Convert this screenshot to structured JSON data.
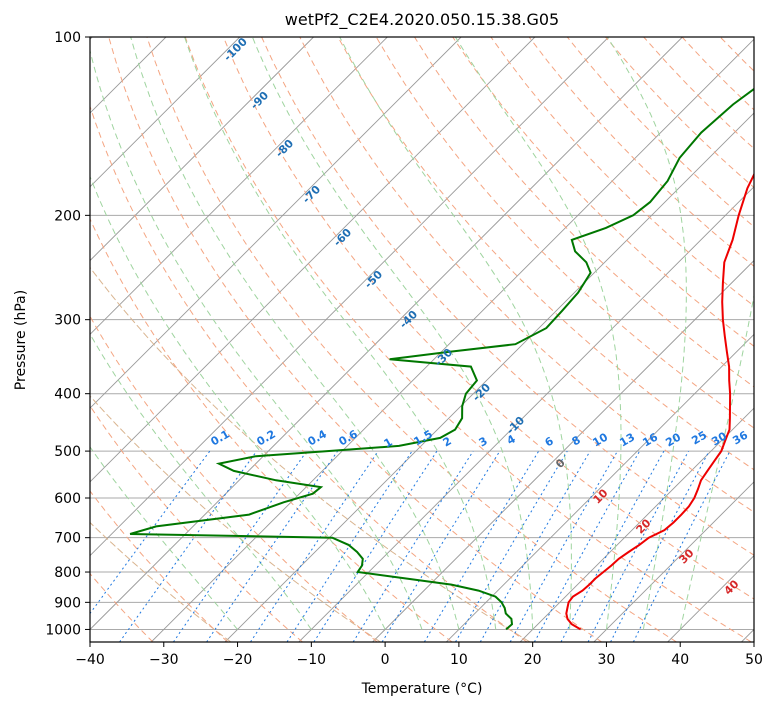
{
  "colors": {
    "temperature": "#ee0000",
    "dewpoint": "#007700",
    "isobar": "#aaaaaa",
    "isotherm": "#999999",
    "dry_adiabat": "#f4a582",
    "moist_adiabat": "#9fd49f",
    "mixing_ratio": "#1f78e0",
    "isentrope": "#d9b48f",
    "label_blue": "#1f6fb4",
    "label_red": "#d62728",
    "label_gray": "#666666"
  },
  "chart_data": {
    "type": "line",
    "title": "wetPf2_C2E4.2020.050.15.38.G05",
    "xlabel": "Temperature (°C)",
    "ylabel": "Pressure (hPa)",
    "xlim": [
      -40,
      50
    ],
    "ylim": [
      1050,
      100
    ],
    "y_scale": "log",
    "skew": "skew-T",
    "x_ticks": [
      "−40",
      "−30",
      "−20",
      "−10",
      "0",
      "10",
      "20",
      "30",
      "40",
      "50"
    ],
    "y_ticks": [
      "100",
      "200",
      "300",
      "400",
      "500",
      "600",
      "700",
      "800",
      "900",
      "1000"
    ],
    "grid": true,
    "series": [
      {
        "id": "temperature",
        "points": [
          [
            1000,
            26.5
          ],
          [
            980,
            24.6
          ],
          [
            960,
            23.3
          ],
          [
            940,
            22.4
          ],
          [
            920,
            21.8
          ],
          [
            900,
            21.2
          ],
          [
            880,
            21.0
          ],
          [
            860,
            21.5
          ],
          [
            840,
            21.6
          ],
          [
            820,
            21.6
          ],
          [
            800,
            21.8
          ],
          [
            780,
            22.0
          ],
          [
            760,
            22.1
          ],
          [
            740,
            22.5
          ],
          [
            720,
            23.0
          ],
          [
            700,
            23.3
          ],
          [
            680,
            24.4
          ],
          [
            660,
            24.6
          ],
          [
            640,
            24.6
          ],
          [
            620,
            24.5
          ],
          [
            600,
            24.1
          ],
          [
            580,
            23.4
          ],
          [
            560,
            22.6
          ],
          [
            540,
            22.2
          ],
          [
            520,
            21.8
          ],
          [
            500,
            21.4
          ],
          [
            480,
            20.5
          ],
          [
            460,
            19.6
          ],
          [
            440,
            18.1
          ],
          [
            420,
            16.5
          ],
          [
            400,
            14.8
          ],
          [
            380,
            12.9
          ],
          [
            360,
            11.0
          ],
          [
            340,
            8.7
          ],
          [
            320,
            6.3
          ],
          [
            300,
            3.8
          ],
          [
            280,
            1.3
          ],
          [
            260,
            -1.2
          ],
          [
            240,
            -3.8
          ],
          [
            220,
            -5.7
          ],
          [
            200,
            -8.2
          ],
          [
            180,
            -10.7
          ],
          [
            160,
            -12.8
          ],
          [
            140,
            -14.8
          ],
          [
            130,
            -15.6
          ],
          [
            120,
            -16.8
          ],
          [
            110,
            -17.4
          ],
          [
            105,
            -17.4
          ],
          [
            100,
            -17.0
          ]
        ]
      },
      {
        "id": "dewpoint",
        "points": [
          [
            1000,
            16.4
          ],
          [
            980,
            16.5
          ],
          [
            960,
            15.7
          ],
          [
            940,
            14.2
          ],
          [
            920,
            13.3
          ],
          [
            900,
            12.1
          ],
          [
            880,
            10.5
          ],
          [
            860,
            7.4
          ],
          [
            840,
            2.9
          ],
          [
            820,
            -4.2
          ],
          [
            800,
            -11.5
          ],
          [
            780,
            -11.8
          ],
          [
            760,
            -12.6
          ],
          [
            740,
            -14.3
          ],
          [
            720,
            -16.4
          ],
          [
            700,
            -19.6
          ],
          [
            690,
            -47.5
          ],
          [
            670,
            -45.0
          ],
          [
            640,
            -34.0
          ],
          [
            610,
            -31.0
          ],
          [
            590,
            -28.2
          ],
          [
            575,
            -28.0
          ],
          [
            560,
            -35.0
          ],
          [
            540,
            -42.0
          ],
          [
            525,
            -45.0
          ],
          [
            510,
            -41.0
          ],
          [
            500,
            -32.0
          ],
          [
            490,
            -23.0
          ],
          [
            475,
            -18.5
          ],
          [
            460,
            -17.6
          ],
          [
            440,
            -18.2
          ],
          [
            420,
            -19.8
          ],
          [
            400,
            -21.0
          ],
          [
            380,
            -21.3
          ],
          [
            360,
            -24.0
          ],
          [
            350,
            -36.0
          ],
          [
            340,
            -29.0
          ],
          [
            330,
            -21.0
          ],
          [
            310,
            -19.0
          ],
          [
            290,
            -19.2
          ],
          [
            270,
            -19.5
          ],
          [
            250,
            -20.5
          ],
          [
            240,
            -22.5
          ],
          [
            230,
            -25.5
          ],
          [
            220,
            -27.5
          ],
          [
            210,
            -24.5
          ],
          [
            200,
            -22.5
          ],
          [
            190,
            -22.0
          ],
          [
            175,
            -22.5
          ],
          [
            160,
            -24.0
          ],
          [
            145,
            -24.5
          ],
          [
            130,
            -24.0
          ],
          [
            120,
            -23.0
          ],
          [
            110,
            -20.5
          ],
          [
            105,
            -19.5
          ],
          [
            100,
            -18.5
          ]
        ]
      }
    ],
    "isentrope_labels": [
      "-100",
      "-90",
      "-80",
      "-70",
      "-60",
      "-50",
      "-40",
      "-30",
      "-20",
      "-10"
    ],
    "mixing_ratio_labels": [
      "0.1",
      "0.2",
      "0.4",
      "0.6",
      "1",
      "1.5",
      "2",
      "3",
      "4",
      "6",
      "8",
      "10",
      "13",
      "16",
      "20",
      "25",
      "30",
      "36"
    ],
    "moist_labels": [
      "0",
      "10",
      "20",
      "30",
      "40"
    ]
  }
}
